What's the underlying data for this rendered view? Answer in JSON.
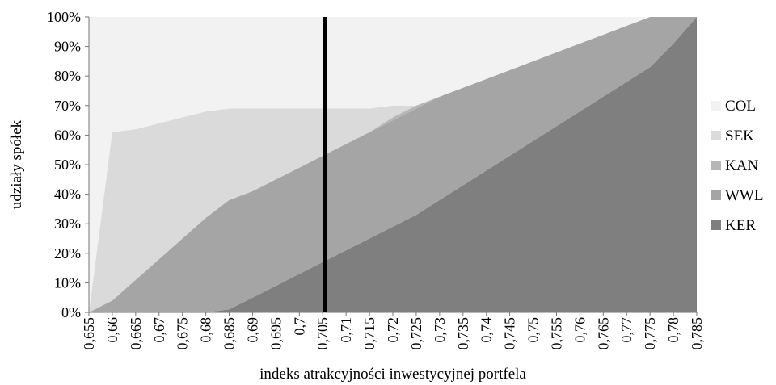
{
  "chart_data": {
    "type": "area",
    "stacked": true,
    "percent_stacked": true,
    "xlabel": "indeks atrakcyjności inwestycyjnej portfela",
    "ylabel": "udziały spółek",
    "ylim": [
      0,
      100
    ],
    "yticks": [
      "0%",
      "10%",
      "20%",
      "30%",
      "40%",
      "50%",
      "60%",
      "70%",
      "80%",
      "90%",
      "100%"
    ],
    "x": [
      "0,655",
      "0,66",
      "0,665",
      "0,67",
      "0,675",
      "0,68",
      "0,685",
      "0,69",
      "0,695",
      "0,7",
      "0,705",
      "0,71",
      "0,715",
      "0,72",
      "0,725",
      "0,73",
      "0,735",
      "0,74",
      "0,745",
      "0,75",
      "0,755",
      "0,76",
      "0,765",
      "0,77",
      "0,775",
      "0,78",
      "0,785"
    ],
    "x_values": [
      0.655,
      0.66,
      0.665,
      0.67,
      0.675,
      0.68,
      0.685,
      0.69,
      0.695,
      0.7,
      0.705,
      0.71,
      0.715,
      0.72,
      0.725,
      0.73,
      0.735,
      0.74,
      0.745,
      0.75,
      0.755,
      0.76,
      0.765,
      0.77,
      0.775,
      0.78,
      0.785
    ],
    "series": [
      {
        "name": "KER",
        "color": "#7f7f7f",
        "values": [
          0,
          0,
          0,
          0,
          0,
          0,
          1,
          5,
          9,
          13,
          17,
          21,
          25,
          29,
          33,
          38,
          43,
          48,
          53,
          58,
          63,
          68,
          73,
          78,
          83,
          91,
          100
        ]
      },
      {
        "name": "WWL",
        "color": "#a5a5a5",
        "values": [
          0,
          4,
          11,
          18,
          25,
          32,
          37,
          36,
          36,
          36,
          36,
          36,
          36,
          36,
          36,
          35,
          33,
          31,
          29,
          27,
          25,
          23,
          21,
          19,
          17,
          9,
          0
        ]
      },
      {
        "name": "KAN",
        "color": "#b6b6b6",
        "values": [
          0,
          0,
          0,
          0,
          0,
          0,
          0,
          0,
          0,
          0,
          0,
          0,
          0,
          1,
          1,
          0,
          0,
          0,
          0,
          0,
          0,
          0,
          0,
          0,
          0,
          0,
          0
        ]
      },
      {
        "name": "SEK",
        "color": "#dadada",
        "values": [
          0,
          57,
          51,
          46,
          41,
          36,
          31,
          28,
          24,
          20,
          16,
          12,
          8,
          4,
          0,
          0,
          0,
          0,
          0,
          0,
          0,
          0,
          0,
          0,
          0,
          0,
          0
        ]
      },
      {
        "name": "COL",
        "color": "#f2f2f2",
        "values": [
          100,
          39,
          38,
          36,
          34,
          32,
          31,
          31,
          31,
          31,
          31,
          31,
          31,
          30,
          30,
          27,
          24,
          21,
          18,
          15,
          12,
          9,
          6,
          3,
          0,
          0,
          0
        ]
      }
    ],
    "legend_order": [
      "COL",
      "SEK",
      "KAN",
      "WWL",
      "KER"
    ],
    "legend_position": "right",
    "vertical_marker": {
      "x": 0.7055,
      "color": "#000000"
    },
    "grid": false
  }
}
